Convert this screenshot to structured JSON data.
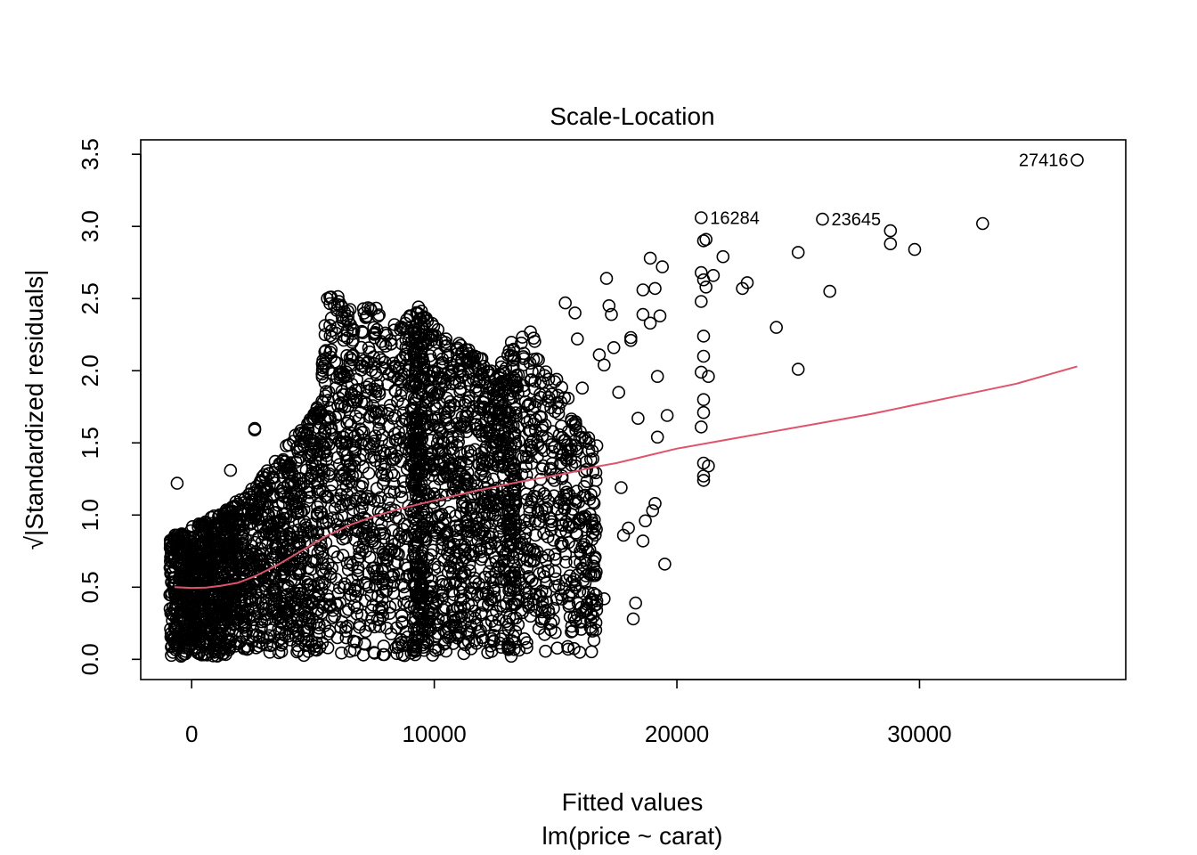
{
  "chart_data": {
    "type": "scatter",
    "title": "Scale-Location",
    "xlabel": "Fitted values",
    "sublabel": "lm(price ~ carat)",
    "ylabel": "√|Standardized residuals|",
    "xlim": [
      -2100,
      38500
    ],
    "ylim": [
      -0.14,
      3.6
    ],
    "x_ticks": [
      0,
      10000,
      20000,
      30000
    ],
    "x_tick_labels": [
      "0",
      "10000",
      "20000",
      "30000"
    ],
    "y_ticks": [
      0.0,
      0.5,
      1.0,
      1.5,
      2.0,
      2.5,
      3.0,
      3.5
    ],
    "y_tick_labels": [
      "0.0",
      "0.5",
      "1.0",
      "1.5",
      "2.0",
      "2.5",
      "3.0",
      "3.5"
    ],
    "grid": false,
    "point_style": "open-circle",
    "smooth_color": "#df536b",
    "labeled_points": [
      {
        "label": "27416",
        "x": 36500,
        "y": 3.46
      },
      {
        "label": "16284",
        "x": 21000,
        "y": 3.06
      },
      {
        "label": "23645",
        "x": 26000,
        "y": 3.05
      }
    ],
    "outlier_points": [
      [
        22700,
        2.57
      ],
      [
        22900,
        2.61
      ],
      [
        25000,
        2.82
      ],
      [
        26300,
        2.55
      ],
      [
        28800,
        2.97
      ],
      [
        28800,
        2.88
      ],
      [
        29800,
        2.84
      ],
      [
        32600,
        3.02
      ],
      [
        24100,
        2.3
      ],
      [
        25000,
        2.01
      ],
      [
        21100,
        2.9
      ],
      [
        21200,
        2.91
      ],
      [
        21000,
        2.68
      ],
      [
        21100,
        2.63
      ],
      [
        21200,
        2.58
      ],
      [
        21000,
        2.48
      ],
      [
        21100,
        2.24
      ],
      [
        21100,
        2.1
      ],
      [
        21000,
        1.99
      ],
      [
        21300,
        1.96
      ],
      [
        21100,
        1.8
      ],
      [
        21100,
        1.71
      ],
      [
        21000,
        1.61
      ],
      [
        21100,
        1.36
      ],
      [
        21300,
        1.34
      ],
      [
        21100,
        1.27
      ],
      [
        21100,
        1.24
      ],
      [
        21500,
        2.66
      ],
      [
        21900,
        2.79
      ],
      [
        18900,
        2.78
      ],
      [
        19100,
        2.57
      ],
      [
        18600,
        2.56
      ],
      [
        19300,
        2.38
      ],
      [
        18600,
        2.39
      ],
      [
        18900,
        2.33
      ],
      [
        19200,
        1.96
      ],
      [
        19600,
        1.69
      ],
      [
        19200,
        1.54
      ],
      [
        18400,
        1.67
      ],
      [
        19400,
        2.72
      ],
      [
        17100,
        2.64
      ],
      [
        17200,
        2.45
      ],
      [
        17300,
        2.39
      ],
      [
        17400,
        2.16
      ],
      [
        18100,
        2.23
      ],
      [
        18100,
        2.21
      ],
      [
        16800,
        2.11
      ],
      [
        17000,
        2.04
      ],
      [
        17600,
        1.85
      ],
      [
        19100,
        1.08
      ],
      [
        19000,
        1.03
      ],
      [
        18600,
        0.82
      ],
      [
        19500,
        0.66
      ],
      [
        18300,
        0.39
      ],
      [
        18200,
        0.28
      ],
      [
        17000,
        0.42
      ],
      [
        16100,
        1.88
      ],
      [
        15800,
        2.4
      ],
      [
        15400,
        2.47
      ],
      [
        15900,
        2.22
      ],
      [
        16200,
        1.3
      ],
      [
        16700,
        1.48
      ],
      [
        17700,
        1.19
      ],
      [
        18000,
        0.91
      ],
      [
        17800,
        0.86
      ],
      [
        18700,
        0.96
      ],
      [
        2600,
        1.6
      ],
      [
        2600,
        1.59
      ],
      [
        -600,
        1.22
      ],
      [
        1600,
        1.31
      ]
    ],
    "smooth_curve": [
      [
        -700,
        0.5
      ],
      [
        0,
        0.495
      ],
      [
        600,
        0.497
      ],
      [
        1200,
        0.51
      ],
      [
        1900,
        0.53
      ],
      [
        2600,
        0.575
      ],
      [
        3500,
        0.65
      ],
      [
        4500,
        0.75
      ],
      [
        5500,
        0.85
      ],
      [
        6500,
        0.93
      ],
      [
        7500,
        0.99
      ],
      [
        8500,
        1.04
      ],
      [
        9500,
        1.08
      ],
      [
        10500,
        1.12
      ],
      [
        11500,
        1.16
      ],
      [
        12500,
        1.195
      ],
      [
        13500,
        1.23
      ],
      [
        14500,
        1.26
      ],
      [
        15500,
        1.29
      ],
      [
        16500,
        1.33
      ],
      [
        17500,
        1.36
      ],
      [
        18500,
        1.4
      ],
      [
        20000,
        1.46
      ],
      [
        22000,
        1.52
      ],
      [
        24000,
        1.58
      ],
      [
        26000,
        1.64
      ],
      [
        28000,
        1.7
      ],
      [
        30000,
        1.77
      ],
      [
        32000,
        1.84
      ],
      [
        34000,
        1.91
      ],
      [
        36500,
        2.03
      ]
    ]
  }
}
